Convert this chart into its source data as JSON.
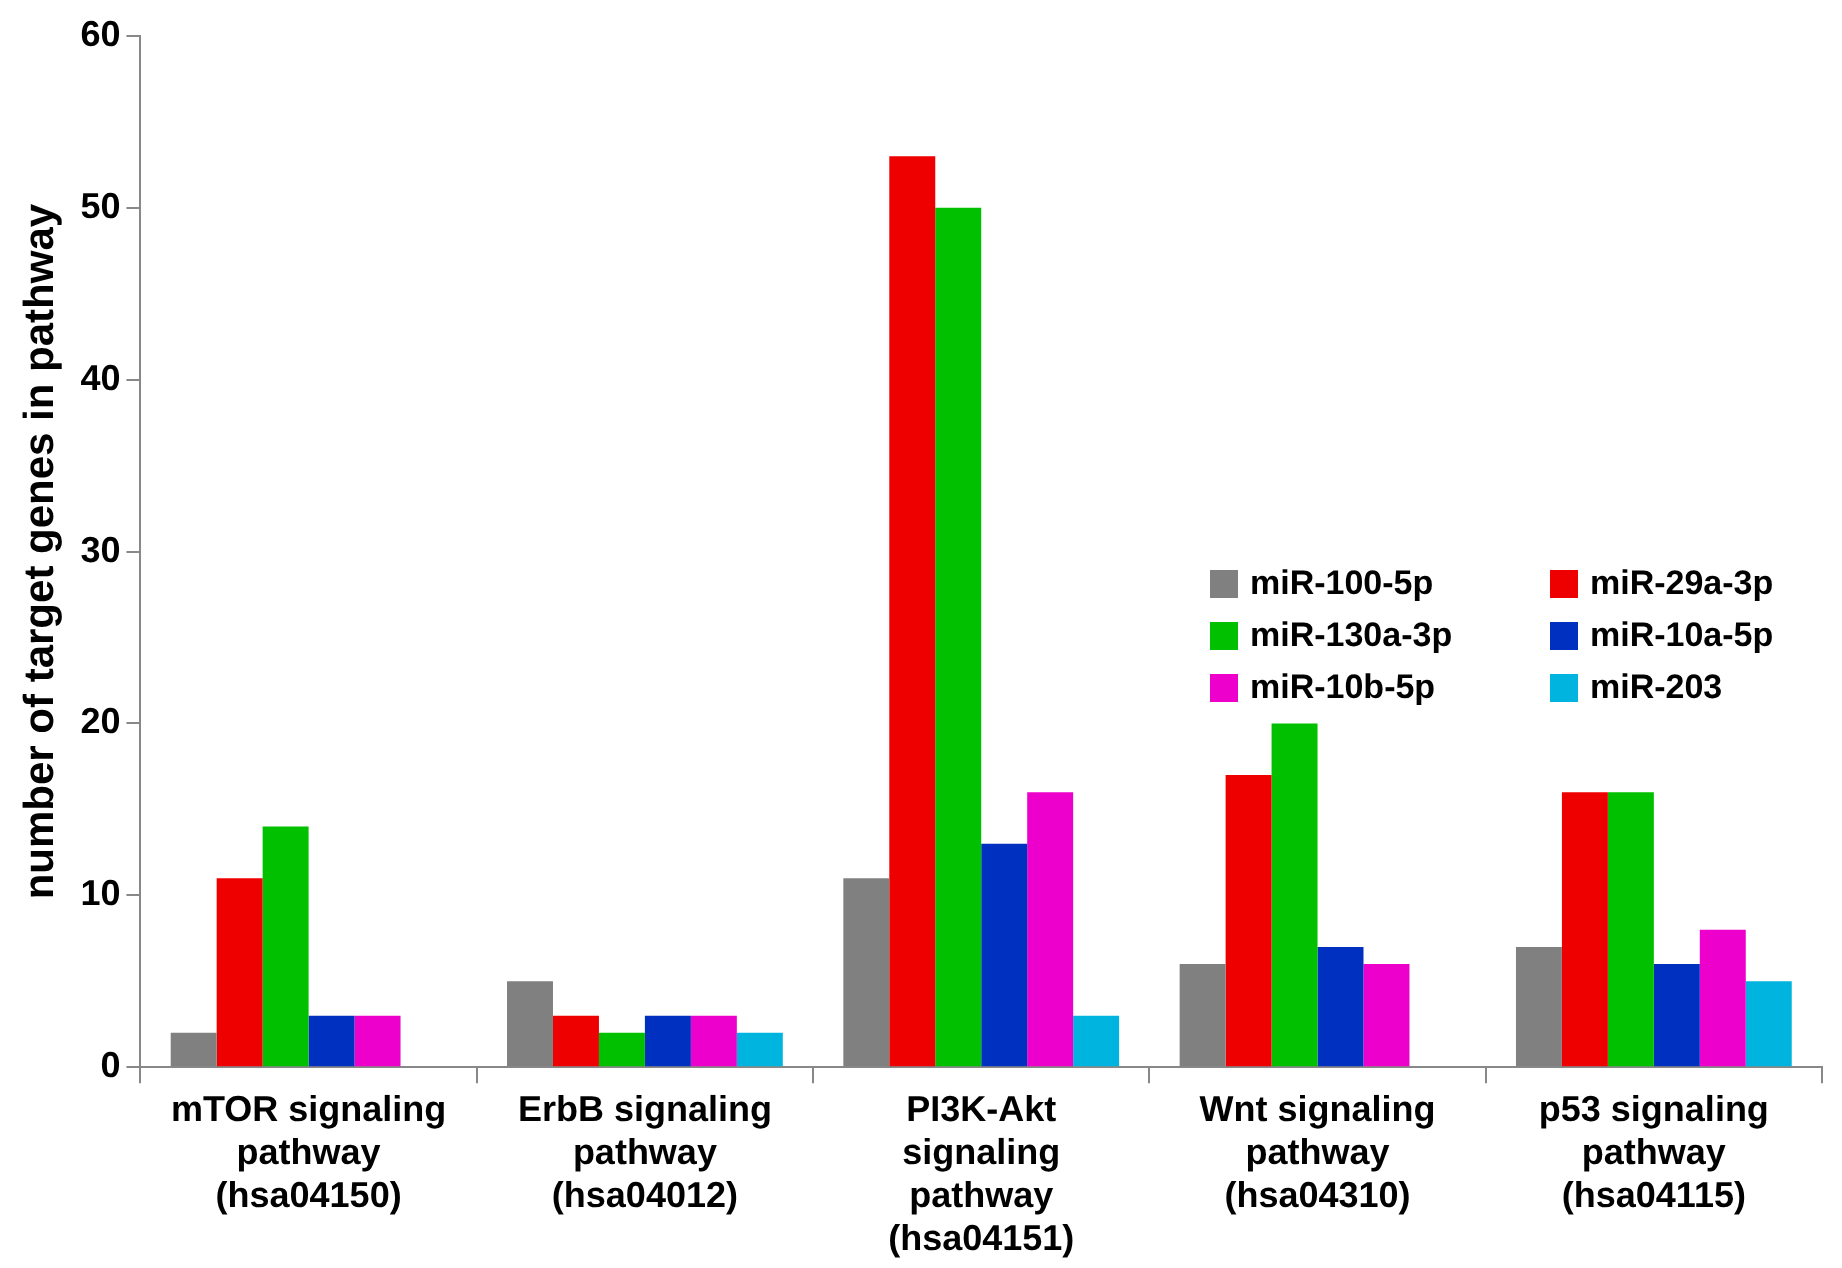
{
  "chart_data": {
    "type": "bar",
    "ylabel": "number of target genes in pathway",
    "categories": [
      "mTOR signaling pathway (hsa04150)",
      "ErbB signaling pathway (hsa04012)",
      "PI3K-Akt signaling pathway (hsa04151)",
      "Wnt signaling pathway (hsa04310)",
      "p53 signaling pathway (hsa04115)"
    ],
    "series": [
      {
        "name": "miR-100-5p",
        "color": "#808080",
        "values": [
          2,
          5,
          11,
          6,
          7
        ]
      },
      {
        "name": "miR-29a-3p",
        "color": "#ee0000",
        "values": [
          11,
          3,
          53,
          17,
          16
        ]
      },
      {
        "name": "miR-130a-3p",
        "color": "#00c000",
        "values": [
          14,
          2,
          50,
          20,
          16
        ]
      },
      {
        "name": "miR-10a-5p",
        "color": "#0030c0",
        "values": [
          3,
          3,
          13,
          7,
          6
        ]
      },
      {
        "name": "miR-10b-5p",
        "color": "#ee00cc",
        "values": [
          3,
          3,
          16,
          6,
          8
        ]
      },
      {
        "name": "miR-203",
        "color": "#00b4e0",
        "values": [
          null,
          2,
          3,
          null,
          5
        ]
      }
    ],
    "ylim": [
      0,
      60
    ],
    "yticks": [
      0,
      10,
      20,
      30,
      40,
      50,
      60
    ],
    "grid": false,
    "legend": "right"
  }
}
